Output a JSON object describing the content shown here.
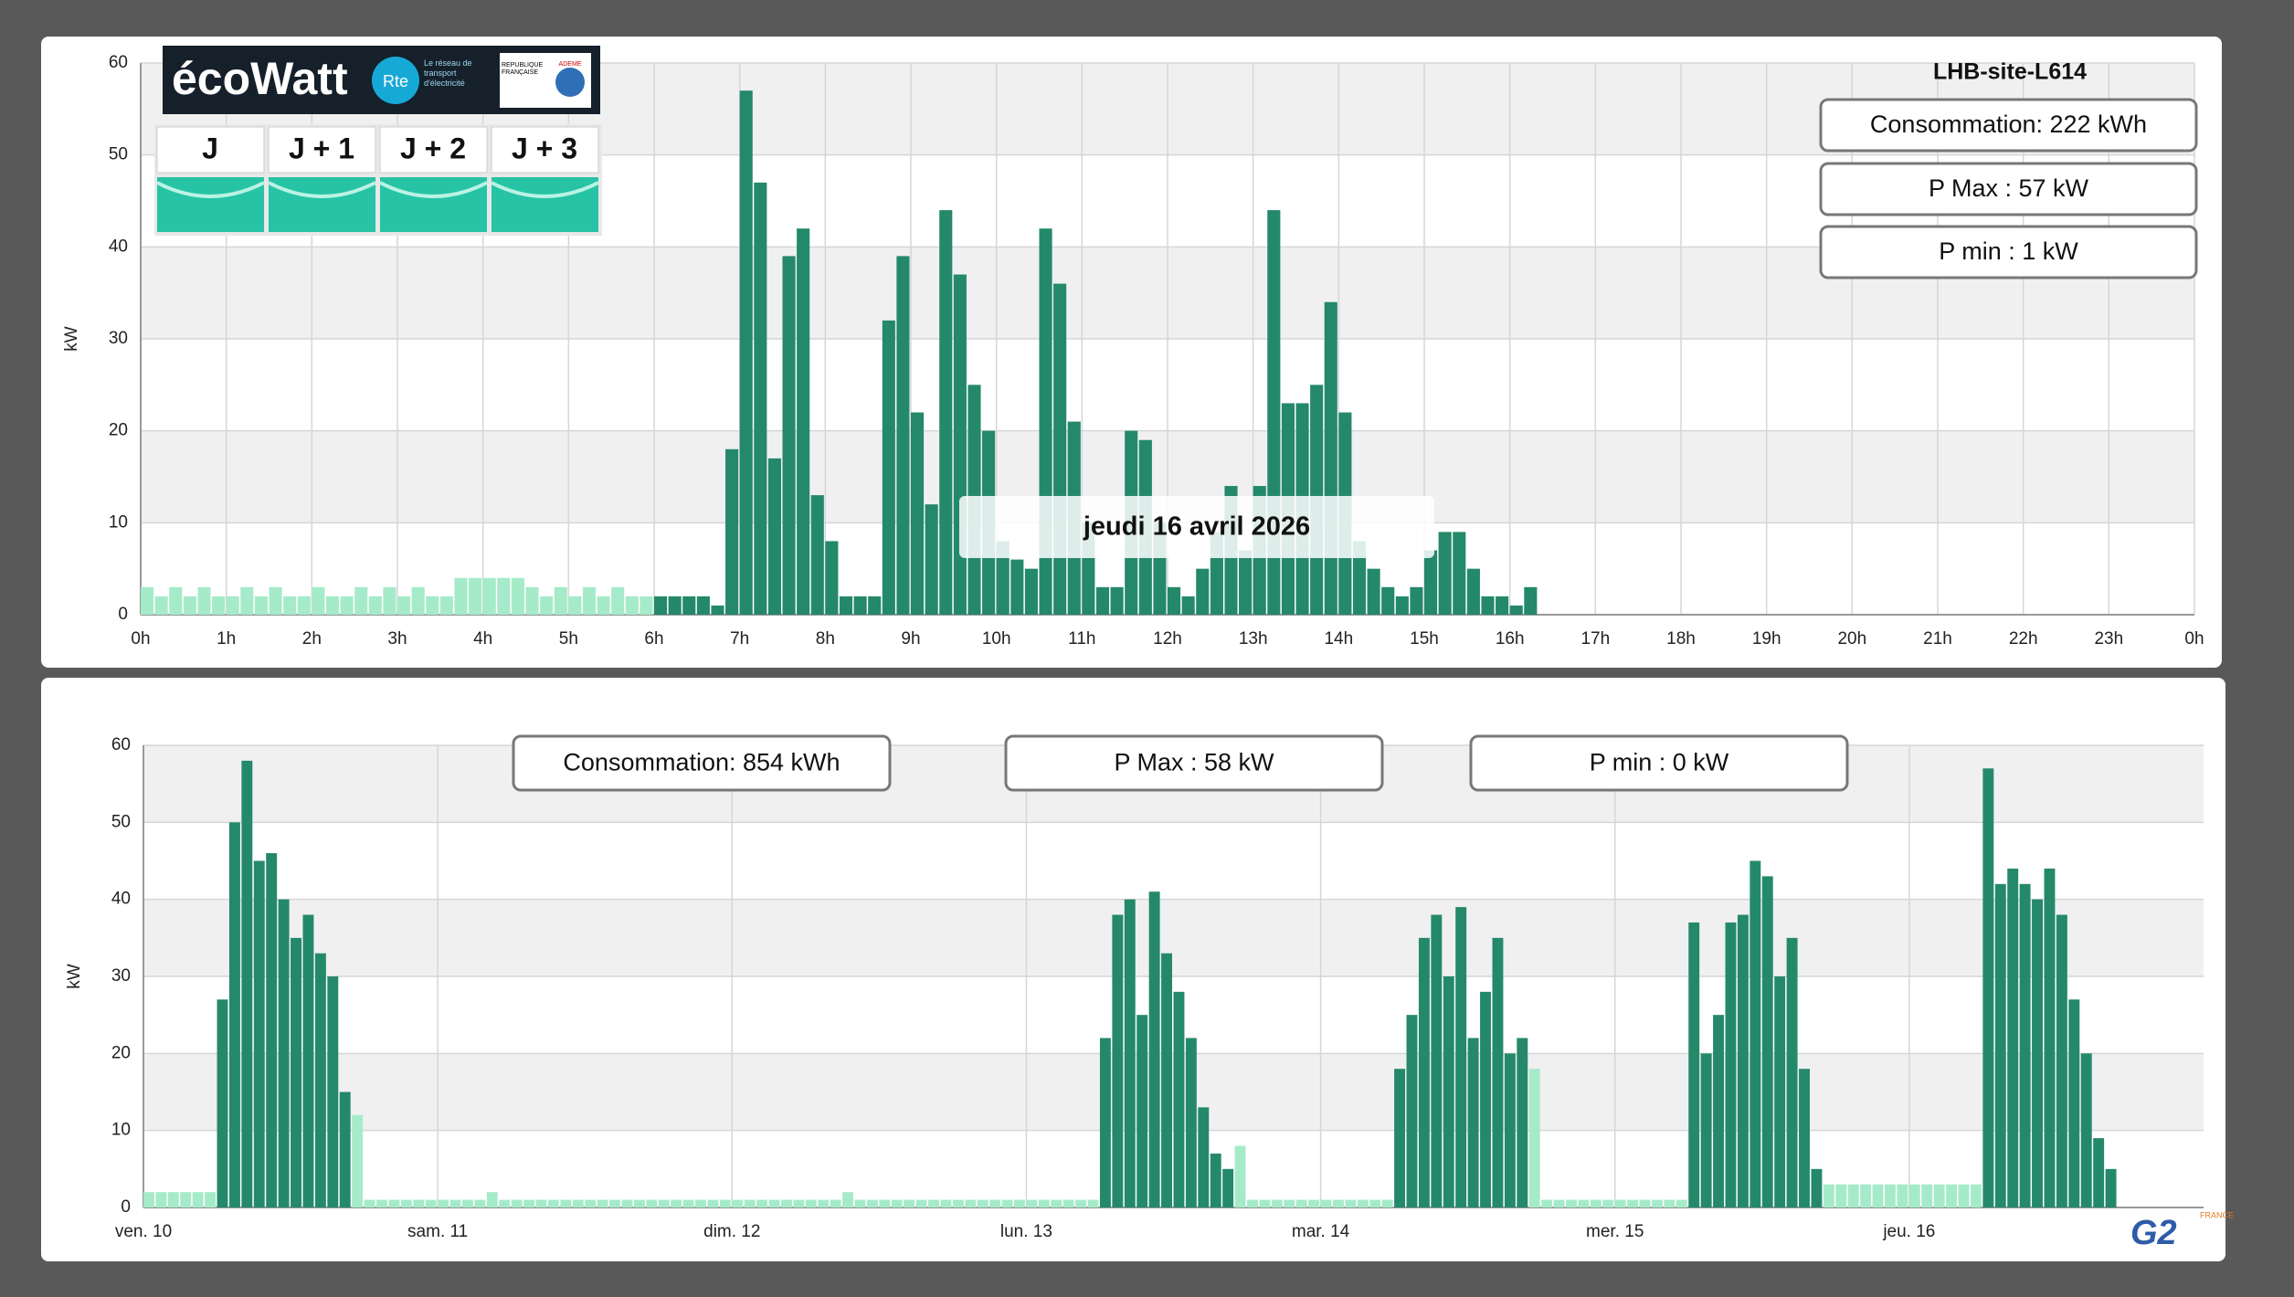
{
  "ecowatt": {
    "brand": "écoWatt",
    "rte": "Rte",
    "rte_text": "Le réseau de transport d'électricité",
    "republic": "RÉPUBLIQUE FRANÇAISE",
    "ademe": "ADEME",
    "days": [
      {
        "label": "J",
        "color": "#27c3a5"
      },
      {
        "label": "J + 1",
        "color": "#27c3a5"
      },
      {
        "label": "J + 2",
        "color": "#27c3a5"
      },
      {
        "label": "J + 3",
        "color": "#27c3a5"
      }
    ]
  },
  "footer_logo": {
    "text": "G2",
    "sub": "FRANCE"
  },
  "chart_data": [
    {
      "type": "bar",
      "title": "LHB-site-L614",
      "y_label": "kW",
      "tooltip": "jeudi 16 avril 2026",
      "annotations": [
        "Consommation: 222 kWh",
        "P Max :  57 kW",
        "P min : 1 kW"
      ],
      "x": [
        0,
        10,
        20,
        30,
        40,
        50,
        60,
        70,
        80,
        90,
        100,
        110,
        120,
        130,
        140,
        150,
        160,
        170,
        180,
        190,
        200,
        210,
        220,
        230,
        240,
        250,
        260,
        270,
        280,
        290,
        300,
        310,
        320,
        330,
        340,
        350,
        360,
        370,
        380,
        390,
        400,
        410,
        420,
        430,
        440,
        450,
        460,
        470,
        480,
        490,
        500,
        510,
        520,
        530,
        540,
        550,
        560,
        570,
        580,
        590,
        600,
        610,
        620,
        630,
        640,
        650,
        660,
        670,
        680,
        690,
        700,
        710,
        720,
        730,
        740,
        750,
        760,
        770,
        780,
        790,
        800,
        810,
        820,
        830,
        840,
        850,
        860,
        870,
        880,
        890,
        900,
        910,
        920,
        930,
        940,
        950,
        960,
        970
      ],
      "xlim": [
        0,
        1440
      ],
      "xticks": [
        {
          "value": 0,
          "label": "0h"
        },
        {
          "value": 60,
          "label": "1h"
        },
        {
          "value": 120,
          "label": "2h"
        },
        {
          "value": 180,
          "label": "3h"
        },
        {
          "value": 240,
          "label": "4h"
        },
        {
          "value": 300,
          "label": "5h"
        },
        {
          "value": 360,
          "label": "6h"
        },
        {
          "value": 420,
          "label": "7h"
        },
        {
          "value": 480,
          "label": "8h"
        },
        {
          "value": 540,
          "label": "9h"
        },
        {
          "value": 600,
          "label": "10h"
        },
        {
          "value": 660,
          "label": "11h"
        },
        {
          "value": 720,
          "label": "12h"
        },
        {
          "value": 780,
          "label": "13h"
        },
        {
          "value": 840,
          "label": "14h"
        },
        {
          "value": 900,
          "label": "15h"
        },
        {
          "value": 960,
          "label": "16h"
        },
        {
          "value": 1020,
          "label": "17h"
        },
        {
          "value": 1080,
          "label": "18h"
        },
        {
          "value": 1140,
          "label": "19h"
        },
        {
          "value": 1200,
          "label": "20h"
        },
        {
          "value": 1260,
          "label": "21h"
        },
        {
          "value": 1320,
          "label": "22h"
        },
        {
          "value": 1380,
          "label": "23h"
        },
        {
          "value": 1440,
          "label": "0h"
        }
      ],
      "ylim": [
        0,
        60
      ],
      "yticks": [
        0,
        10,
        20,
        30,
        40,
        50,
        60
      ],
      "grid": true,
      "series": [
        {
          "color": "#a6ebc9",
          "values": [
            3,
            2,
            3,
            2,
            3,
            2,
            2,
            3,
            2,
            3,
            2,
            2,
            3,
            2,
            2,
            3,
            2,
            3,
            2,
            3,
            2,
            2,
            4,
            4,
            4,
            4,
            4,
            3,
            2,
            3,
            2,
            3,
            2,
            3,
            2,
            2,
            null,
            null,
            null,
            null,
            null,
            null,
            null,
            null,
            null,
            null,
            null,
            null,
            null,
            null,
            null,
            null,
            null,
            null,
            null,
            null,
            null,
            null,
            null,
            null,
            null,
            null,
            null,
            null,
            null,
            null,
            null,
            null,
            null,
            null,
            null,
            null,
            null,
            null,
            null,
            null,
            null,
            null,
            null,
            null,
            null,
            null,
            null,
            null,
            null,
            null,
            null,
            null,
            null,
            null,
            null,
            null,
            null,
            null,
            null,
            null,
            null,
            null
          ]
        },
        {
          "color": "#24896a",
          "values": [
            null,
            null,
            null,
            null,
            null,
            null,
            null,
            null,
            null,
            null,
            null,
            null,
            null,
            null,
            null,
            null,
            null,
            null,
            null,
            null,
            null,
            null,
            null,
            null,
            null,
            null,
            null,
            null,
            null,
            null,
            null,
            null,
            null,
            null,
            null,
            null,
            2,
            2,
            2,
            2,
            1,
            18,
            57,
            47,
            17,
            39,
            42,
            13,
            8,
            2,
            2,
            2,
            32,
            39,
            22,
            12,
            44,
            37,
            25,
            20,
            8,
            6,
            5,
            42,
            36,
            21,
            10,
            3,
            3,
            20,
            19,
            10,
            3,
            2,
            5,
            9,
            14,
            7,
            14,
            44,
            23,
            23,
            25,
            34,
            22,
            8,
            5,
            3,
            2,
            3,
            7,
            9,
            9,
            5,
            2,
            2,
            1,
            3
          ]
        }
      ]
    },
    {
      "type": "bar",
      "y_label": "kW",
      "annotations": [
        "Consommation: 854 kWh",
        "P Max :  58 kW",
        "P min : 0 kW"
      ],
      "x": [
        0,
        1,
        2,
        3,
        4,
        5,
        6,
        7,
        8,
        9,
        10,
        11,
        12,
        13,
        14,
        15,
        16,
        17,
        18,
        19,
        20,
        21,
        22,
        23,
        24,
        25,
        26,
        27,
        28,
        29,
        30,
        31,
        32,
        33,
        34,
        35,
        36,
        37,
        38,
        39,
        40,
        41,
        42,
        43,
        44,
        45,
        46,
        47,
        48,
        49,
        50,
        51,
        52,
        53,
        54,
        55,
        56,
        57,
        58,
        59,
        60,
        61,
        62,
        63,
        64,
        65,
        66,
        67,
        68,
        69,
        70,
        71,
        72,
        73,
        74,
        75,
        76,
        77,
        78,
        79,
        80,
        81,
        82,
        83,
        84,
        85,
        86,
        87,
        88,
        89,
        90,
        91,
        92,
        93,
        94,
        95,
        96,
        97,
        98,
        99,
        100,
        101,
        102,
        103,
        104,
        105,
        106,
        107,
        108,
        109,
        110,
        111,
        112,
        113,
        114,
        115,
        116,
        117,
        118,
        119,
        120,
        121,
        122,
        123,
        124,
        125,
        126,
        127,
        128,
        129,
        130,
        131,
        132,
        133,
        134,
        135,
        136,
        137,
        138,
        139,
        140,
        141,
        142,
        143,
        144,
        145,
        146,
        147,
        148,
        149,
        150,
        151,
        152,
        153,
        154,
        155,
        156,
        157,
        158,
        159,
        160
      ],
      "xlim": [
        0,
        168
      ],
      "xticks": [
        {
          "value": 0,
          "label": "ven. 10"
        },
        {
          "value": 24,
          "label": "sam. 11"
        },
        {
          "value": 48,
          "label": "dim. 12"
        },
        {
          "value": 72,
          "label": "lun. 13"
        },
        {
          "value": 96,
          "label": "mar. 14"
        },
        {
          "value": 120,
          "label": "mer. 15"
        },
        {
          "value": 144,
          "label": "jeu. 16"
        }
      ],
      "ylim": [
        0,
        60
      ],
      "yticks": [
        0,
        10,
        20,
        30,
        40,
        50,
        60
      ],
      "grid": true,
      "series": [
        {
          "color": "#a6ebc9",
          "values": [
            2,
            2,
            2,
            2,
            2,
            2,
            null,
            null,
            null,
            null,
            null,
            null,
            null,
            null,
            null,
            null,
            null,
            12,
            1,
            1,
            1,
            1,
            1,
            1,
            1,
            1,
            1,
            1,
            2,
            1,
            1,
            1,
            1,
            1,
            1,
            1,
            1,
            1,
            1,
            1,
            1,
            1,
            1,
            1,
            1,
            1,
            1,
            1,
            1,
            1,
            1,
            1,
            1,
            1,
            1,
            1,
            1,
            2,
            1,
            1,
            1,
            1,
            1,
            1,
            1,
            1,
            1,
            1,
            1,
            1,
            1,
            1,
            1,
            1,
            1,
            1,
            1,
            1,
            null,
            null,
            null,
            null,
            null,
            null,
            null,
            null,
            null,
            null,
            null,
            8,
            1,
            1,
            1,
            1,
            1,
            1,
            1,
            1,
            1,
            1,
            1,
            1,
            null,
            null,
            null,
            null,
            null,
            null,
            null,
            null,
            null,
            null,
            null,
            18,
            1,
            1,
            1,
            1,
            1,
            1,
            1,
            1,
            1,
            1,
            1,
            1,
            null,
            null,
            null,
            null,
            null,
            null,
            null,
            null,
            null,
            null,
            null,
            3,
            3,
            3,
            3,
            3,
            3,
            3,
            3,
            3,
            3,
            3,
            3,
            3,
            null,
            null,
            null,
            null,
            null,
            null,
            null,
            null,
            null,
            null,
            null
          ]
        },
        {
          "color": "#24896a",
          "values": [
            null,
            null,
            null,
            null,
            null,
            null,
            27,
            50,
            58,
            45,
            46,
            40,
            35,
            38,
            33,
            30,
            15,
            null,
            null,
            null,
            null,
            null,
            null,
            null,
            null,
            null,
            null,
            null,
            null,
            null,
            null,
            null,
            null,
            null,
            null,
            null,
            null,
            null,
            null,
            null,
            null,
            null,
            null,
            null,
            null,
            null,
            null,
            null,
            null,
            null,
            null,
            null,
            null,
            null,
            null,
            null,
            null,
            null,
            null,
            null,
            null,
            null,
            null,
            null,
            null,
            null,
            null,
            null,
            null,
            null,
            null,
            null,
            null,
            null,
            null,
            null,
            null,
            null,
            22,
            38,
            40,
            25,
            41,
            33,
            28,
            22,
            13,
            7,
            5,
            null,
            null,
            null,
            null,
            null,
            null,
            null,
            null,
            null,
            null,
            null,
            null,
            null,
            18,
            25,
            35,
            38,
            30,
            39,
            22,
            28,
            35,
            20,
            22,
            null,
            null,
            null,
            null,
            null,
            null,
            null,
            null,
            null,
            null,
            null,
            null,
            null,
            37,
            20,
            25,
            37,
            38,
            45,
            43,
            30,
            35,
            18,
            5,
            null,
            null,
            null,
            null,
            null,
            null,
            null,
            null,
            null,
            null,
            null,
            null,
            null,
            57,
            42,
            44,
            42,
            40,
            44,
            38,
            27,
            20,
            9,
            5
          ]
        }
      ]
    }
  ]
}
